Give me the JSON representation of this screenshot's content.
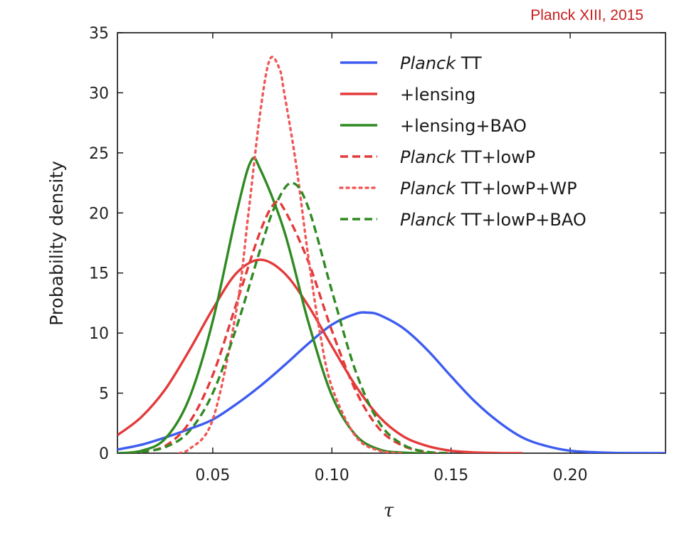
{
  "annotation": "Planck XIII, 2015",
  "chart_data": {
    "type": "line",
    "title": "",
    "xlabel": "τ",
    "ylabel": "Probability density",
    "xlim": [
      0.01,
      0.24
    ],
    "ylim": [
      0,
      35
    ],
    "xticks": [
      0.05,
      0.1,
      0.15,
      0.2
    ],
    "xtick_labels": [
      "0.05",
      "0.10",
      "0.15",
      "0.20"
    ],
    "yticks": [
      0,
      5,
      10,
      15,
      20,
      25,
      30,
      35
    ],
    "ytick_labels": [
      "0",
      "5",
      "10",
      "15",
      "20",
      "25",
      "30",
      "35"
    ],
    "grid": false,
    "legend_position": "top-right",
    "series": [
      {
        "legend_italic": "Planck",
        "legend_rest": " TT",
        "color": "#3d5cf0",
        "style": "solid",
        "points": [
          [
            0.01,
            0.3
          ],
          [
            0.02,
            0.7
          ],
          [
            0.03,
            1.3
          ],
          [
            0.04,
            2.0
          ],
          [
            0.05,
            2.8
          ],
          [
            0.06,
            4.1
          ],
          [
            0.07,
            5.6
          ],
          [
            0.08,
            7.3
          ],
          [
            0.09,
            9.1
          ],
          [
            0.1,
            10.7
          ],
          [
            0.11,
            11.6
          ],
          [
            0.115,
            11.7
          ],
          [
            0.12,
            11.5
          ],
          [
            0.13,
            10.4
          ],
          [
            0.14,
            8.6
          ],
          [
            0.15,
            6.4
          ],
          [
            0.16,
            4.3
          ],
          [
            0.17,
            2.6
          ],
          [
            0.18,
            1.3
          ],
          [
            0.19,
            0.6
          ],
          [
            0.2,
            0.2
          ],
          [
            0.21,
            0.08
          ],
          [
            0.22,
            0.02
          ],
          [
            0.24,
            0
          ]
        ]
      },
      {
        "legend_italic": "",
        "legend_rest": "+lensing",
        "color": "#e33a3a",
        "style": "solid",
        "points": [
          [
            0.01,
            1.5
          ],
          [
            0.02,
            3.0
          ],
          [
            0.03,
            5.3
          ],
          [
            0.04,
            8.5
          ],
          [
            0.05,
            12.0
          ],
          [
            0.06,
            15.0
          ],
          [
            0.07,
            16.1
          ],
          [
            0.08,
            15.0
          ],
          [
            0.09,
            12.3
          ],
          [
            0.1,
            8.9
          ],
          [
            0.11,
            5.6
          ],
          [
            0.12,
            3.0
          ],
          [
            0.13,
            1.4
          ],
          [
            0.14,
            0.6
          ],
          [
            0.15,
            0.2
          ],
          [
            0.16,
            0.06
          ],
          [
            0.17,
            0.01
          ],
          [
            0.18,
            0
          ]
        ]
      },
      {
        "legend_italic": "",
        "legend_rest": "+lensing+BAO",
        "color": "#2f8a22",
        "style": "solid",
        "points": [
          [
            0.01,
            0
          ],
          [
            0.02,
            0.2
          ],
          [
            0.03,
            1.2
          ],
          [
            0.04,
            4.5
          ],
          [
            0.05,
            11.0
          ],
          [
            0.06,
            20.0
          ],
          [
            0.066,
            24.3
          ],
          [
            0.07,
            23.6
          ],
          [
            0.08,
            18.5
          ],
          [
            0.09,
            11.0
          ],
          [
            0.1,
            4.8
          ],
          [
            0.11,
            1.5
          ],
          [
            0.12,
            0.3
          ],
          [
            0.13,
            0.05
          ],
          [
            0.14,
            0
          ]
        ]
      },
      {
        "legend_italic": "Planck",
        "legend_rest": " TT+lowP",
        "color": "#e33a3a",
        "style": "dashed",
        "points": [
          [
            0.015,
            0
          ],
          [
            0.02,
            0.1
          ],
          [
            0.03,
            0.6
          ],
          [
            0.04,
            2.5
          ],
          [
            0.05,
            6.5
          ],
          [
            0.06,
            12.5
          ],
          [
            0.07,
            18.5
          ],
          [
            0.076,
            20.8
          ],
          [
            0.08,
            20.3
          ],
          [
            0.09,
            16.0
          ],
          [
            0.1,
            10.2
          ],
          [
            0.11,
            5.2
          ],
          [
            0.12,
            2.0
          ],
          [
            0.13,
            0.6
          ],
          [
            0.14,
            0.1
          ],
          [
            0.15,
            0
          ]
        ]
      },
      {
        "legend_italic": "Planck",
        "legend_rest": " TT+lowP+WP",
        "color": "#f05858",
        "style": "dotted",
        "points": [
          [
            0.036,
            0
          ],
          [
            0.04,
            0.3
          ],
          [
            0.05,
            2.8
          ],
          [
            0.06,
            12.0
          ],
          [
            0.065,
            20.0
          ],
          [
            0.07,
            28.5
          ],
          [
            0.074,
            32.8
          ],
          [
            0.078,
            32.0
          ],
          [
            0.08,
            30.0
          ],
          [
            0.085,
            24.0
          ],
          [
            0.09,
            16.5
          ],
          [
            0.095,
            10.0
          ],
          [
            0.1,
            5.5
          ],
          [
            0.11,
            1.4
          ],
          [
            0.12,
            0.2
          ],
          [
            0.13,
            0
          ]
        ]
      },
      {
        "legend_italic": "Planck",
        "legend_rest": " TT+lowP+BAO",
        "color": "#2f8a22",
        "style": "dashed",
        "points": [
          [
            0.015,
            0
          ],
          [
            0.02,
            0.1
          ],
          [
            0.03,
            0.5
          ],
          [
            0.04,
            1.8
          ],
          [
            0.05,
            5.0
          ],
          [
            0.06,
            10.5
          ],
          [
            0.07,
            17.0
          ],
          [
            0.076,
            20.5
          ],
          [
            0.083,
            22.5
          ],
          [
            0.09,
            20.5
          ],
          [
            0.1,
            13.5
          ],
          [
            0.11,
            6.8
          ],
          [
            0.12,
            2.5
          ],
          [
            0.13,
            0.7
          ],
          [
            0.14,
            0.1
          ],
          [
            0.15,
            0
          ]
        ]
      }
    ]
  }
}
